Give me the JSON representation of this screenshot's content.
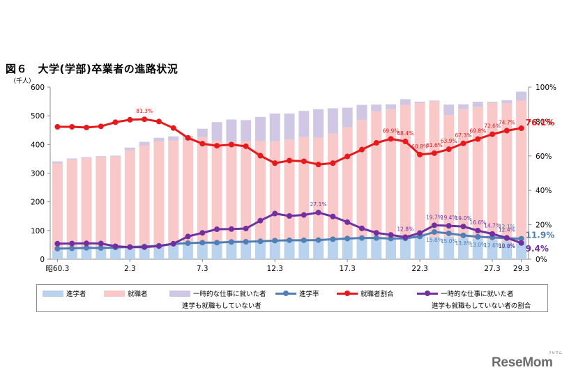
{
  "title": "図６　大学(学部)卒業者の進路状況",
  "unit": "（千人）",
  "logo": "ReseMom",
  "logo_sub": "リセマム",
  "chart_data": {
    "type": "bar",
    "stacked": true,
    "x": [
      "昭60.3",
      "61.3",
      "62.3",
      "63.3",
      "元.3",
      "2.3",
      "3.3",
      "4.3",
      "5.3",
      "6.3",
      "7.3",
      "8.3",
      "9.3",
      "10.3",
      "11.3",
      "12.3",
      "13.3",
      "14.3",
      "15.3",
      "16.3",
      "17.3",
      "18.3",
      "19.3",
      "20.3",
      "21.3",
      "22.3",
      "23.3",
      "24.3",
      "25.3",
      "26.3",
      "27.3",
      "28.3",
      "29.3"
    ],
    "x_tick_labels": [
      {
        "index": 0,
        "label": "昭60.3"
      },
      {
        "index": 5,
        "label": "2.3"
      },
      {
        "index": 10,
        "label": "7.3"
      },
      {
        "index": 15,
        "label": "12.3"
      },
      {
        "index": 20,
        "label": "17.3"
      },
      {
        "index": 25,
        "label": "22.3"
      },
      {
        "index": 30,
        "label": "27.3"
      },
      {
        "index": 32,
        "label": "29.3"
      }
    ],
    "ylim": [
      0,
      600
    ],
    "y_ticks": [
      0,
      100,
      200,
      300,
      400,
      500,
      600
    ],
    "y2lim": [
      0,
      100
    ],
    "y2_ticks": [
      "0%",
      "20%",
      "40%",
      "60%",
      "80%",
      "100%"
    ],
    "grid": false,
    "legend_position": "bottom",
    "series": [
      {
        "name": "進学者",
        "kind": "bar",
        "color": "#b9d3ee",
        "values": [
          31,
          32,
          35,
          34,
          36,
          39,
          41,
          45,
          51,
          57,
          59,
          59,
          60,
          61,
          62,
          64,
          67,
          67,
          68,
          71,
          74,
          75,
          76,
          75,
          77,
          85,
          76,
          78,
          74,
          71,
          66,
          62,
          64
        ]
      },
      {
        "name": "就職者",
        "kind": "bar",
        "color": "#f9c8c8",
        "values": [
          303,
          315,
          318,
          322,
          322,
          350,
          368,
          378,
          377,
          372,
          367,
          355,
          349,
          350,
          350,
          347,
          350,
          359,
          356,
          367,
          386,
          411,
          440,
          448,
          461,
          459,
          474,
          425,
          449,
          460,
          479,
          492,
          520
        ]
      },
      {
        "name": "一時的な仕事に就いた者 進学も就職もしていない者",
        "kind": "bar",
        "color": "#cfc7e3",
        "values": [
          7,
          4,
          3,
          3,
          3,
          -9,
          -13,
          -12,
          -14,
          -13,
          29,
          64,
          78,
          74,
          84,
          97,
          91,
          91,
          99,
          88,
          68,
          52,
          23,
          17,
          20,
          5,
          3,
          36,
          17,
          18,
          4,
          -10,
          -31
        ]
      },
      {
        "name": "進学率",
        "kind": "line",
        "color": "#4f7fb4",
        "values": [
          6.1,
          6.3,
          6.6,
          6.5,
          6.8,
          7.1,
          7.4,
          7.8,
          8.9,
          9.3,
          9.6,
          9.6,
          10.0,
          10.1,
          10.4,
          10.8,
          11.0,
          11.0,
          11.1,
          11.6,
          12.0,
          12.3,
          12.3,
          12.0,
          12.1,
          13.2,
          15.8,
          15.0,
          13.8,
          13.0,
          12.6,
          12.2,
          11.9
        ]
      },
      {
        "name": "就職者割合",
        "kind": "line",
        "color": "#e41a1c",
        "values": [
          76.9,
          76.9,
          76.5,
          77.2,
          79.6,
          81.0,
          81.3,
          80.0,
          76.2,
          70.5,
          67.1,
          65.9,
          66.6,
          65.6,
          60.1,
          55.8,
          57.3,
          56.9,
          55.0,
          55.8,
          59.7,
          63.7,
          67.6,
          69.9,
          68.4,
          60.8,
          61.6,
          63.9,
          67.3,
          69.8,
          72.6,
          74.7,
          76.1
        ]
      },
      {
        "name": "一時的な仕事に就いた者 進学も就職もしていない者の割合",
        "kind": "line",
        "color": "#7030a0",
        "values": [
          9.0,
          9.1,
          9.2,
          9.1,
          7.5,
          7.0,
          7.0,
          7.6,
          9.0,
          13.2,
          15.3,
          17.4,
          17.5,
          17.8,
          22.4,
          26.5,
          25.1,
          25.7,
          27.1,
          24.8,
          21.5,
          17.9,
          15.3,
          14.1,
          12.8,
          15.2,
          19.7,
          19.4,
          19.0,
          16.6,
          14.7,
          12.4,
          9.4
        ]
      }
    ],
    "annotations": [
      {
        "series": "就職者割合",
        "index": 6,
        "text": "81.3%"
      },
      {
        "series": "就職者割合",
        "index": 23,
        "text": "69.9%"
      },
      {
        "series": "就職者割合",
        "index": 24,
        "text": "68.4%"
      },
      {
        "series": "就職者割合",
        "index": 25,
        "text": "60.8%"
      },
      {
        "series": "就職者割合",
        "index": 26,
        "text": "61.6%"
      },
      {
        "series": "就職者割合",
        "index": 27,
        "text": "63.9%"
      },
      {
        "series": "就職者割合",
        "index": 28,
        "text": "67.3%"
      },
      {
        "series": "就職者割合",
        "index": 29,
        "text": "69.8%"
      },
      {
        "series": "就職者割合",
        "index": 30,
        "text": "72.6%"
      },
      {
        "series": "就職者割合",
        "index": 31,
        "text": "74.7%"
      },
      {
        "series": "就職者割合",
        "index": 32,
        "text": "76.1%",
        "emphasis": true
      },
      {
        "series": "一時的な仕事に就いた者 進学も就職もしていない者の割合",
        "index": 18,
        "text": "27.1%"
      },
      {
        "series": "一時的な仕事に就いた者 進学も就職もしていない者の割合",
        "index": 24,
        "text": "12.8%"
      },
      {
        "series": "一時的な仕事に就いた者 進学も就職もしていない者の割合",
        "index": 26,
        "text": "19.7%"
      },
      {
        "series": "一時的な仕事に就いた者 進学も就職もしていない者の割合",
        "index": 27,
        "text": "19.4%"
      },
      {
        "series": "一時的な仕事に就いた者 進学も就職もしていない者の割合",
        "index": 28,
        "text": "19.0%"
      },
      {
        "series": "一時的な仕事に就いた者 進学も就職もしていない者の割合",
        "index": 29,
        "text": "16.6%"
      },
      {
        "series": "一時的な仕事に就いた者 進学も就職もしていない者の割合",
        "index": 30,
        "text": "14.7%"
      },
      {
        "series": "一時的な仕事に就いた者 進学も就職もしていない者の割合",
        "index": 31,
        "text": "12.4%"
      },
      {
        "series": "一時的な仕事に就いた者 進学も就職もしていない者の割合",
        "index": 32,
        "text": "9.4%",
        "emphasis": true
      },
      {
        "series": "進学率",
        "index": 26,
        "text": "15.8%"
      },
      {
        "series": "進学率",
        "index": 27,
        "text": "15.0%"
      },
      {
        "series": "進学率",
        "index": 28,
        "text": "13.8%"
      },
      {
        "series": "進学率",
        "index": 29,
        "text": "13.0%"
      },
      {
        "series": "進学率",
        "index": 30,
        "text": "12.6%"
      },
      {
        "series": "進学率",
        "index": 31,
        "text": "12.2%"
      },
      {
        "series": "進学率",
        "index": 32,
        "text": "11.9%",
        "emphasis": true
      },
      {
        "series": "進学率",
        "index": 31,
        "text": "12.1%",
        "alt": true
      },
      {
        "series": "一時的な仕事に就いた者 進学も就職もしていない者の割合",
        "index": 31,
        "text": "10.6%",
        "alt": true
      }
    ]
  },
  "legend": {
    "items": [
      {
        "label": "進学者",
        "color": "#b9d3ee",
        "kind": "box"
      },
      {
        "label": "就職者",
        "color": "#f9c8c8",
        "kind": "box"
      },
      {
        "label": "一時的な仕事に就いた者",
        "sub": "進学も就職もしていない者",
        "color": "#cfc7e3",
        "kind": "box"
      },
      {
        "label": "進学率",
        "color": "#4f7fb4",
        "kind": "line"
      },
      {
        "label": "就職者割合",
        "color": "#e41a1c",
        "kind": "line"
      },
      {
        "label": "一時的な仕事に就いた者",
        "sub": "進学も就職もしていない者の割合",
        "color": "#7030a0",
        "kind": "line"
      }
    ]
  }
}
